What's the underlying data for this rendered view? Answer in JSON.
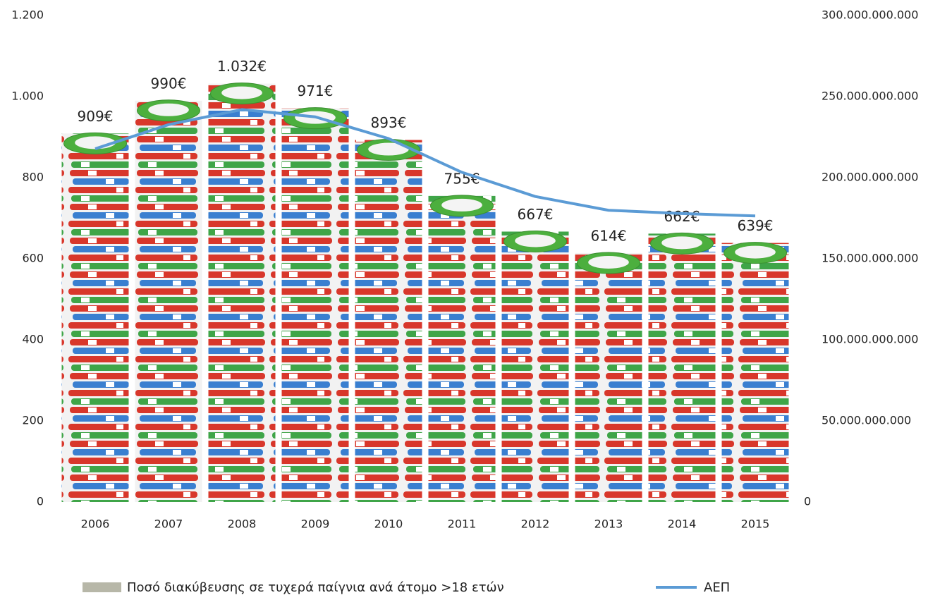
{
  "chart_data": {
    "type": "bar",
    "categories": [
      "2006",
      "2007",
      "2008",
      "2009",
      "2010",
      "2011",
      "2012",
      "2013",
      "2014",
      "2015"
    ],
    "series": [
      {
        "name": "Ποσό διακύβευσης σε τυχερά παίγνια ανά άτομο >18 ετών",
        "color": "#b7b7a8",
        "values": [
          909,
          990,
          1032,
          971,
          893,
          755,
          667,
          614,
          662,
          639
        ],
        "value_labels": [
          "909€",
          "990€",
          "1.032€",
          "971€",
          "893€",
          "755€",
          "667€",
          "614€",
          "662€",
          "639€"
        ]
      },
      {
        "name": "ΑΕΠ",
        "color": "#5b9bd5",
        "axis": "y2",
        "values": [
          217800000000,
          232700000000,
          242000000000,
          237500000000,
          224100000000,
          203300000000,
          188400000000,
          179900000000,
          177900000000,
          176400000000
        ]
      }
    ],
    "ylim": [
      0,
      1200
    ],
    "yticks": [
      0,
      200,
      400,
      600,
      800,
      {
        "value": 1000,
        "label": "1.000"
      },
      {
        "value": 1200,
        "label": "1.200"
      }
    ],
    "y2lim": [
      0,
      300000000000
    ],
    "y2ticks": [
      0,
      {
        "value": 50000000000,
        "label": "50.000.000.000"
      },
      {
        "value": 100000000000,
        "label": "100.000.000.000"
      },
      {
        "value": 150000000000,
        "label": "150.000.000.000"
      },
      {
        "value": 200000000000,
        "label": "200.000.000.000"
      },
      {
        "value": 250000000000,
        "label": "250.000.000.000"
      },
      {
        "value": 300000000000,
        "label": "300.000.000.000"
      }
    ],
    "grid": false
  }
}
